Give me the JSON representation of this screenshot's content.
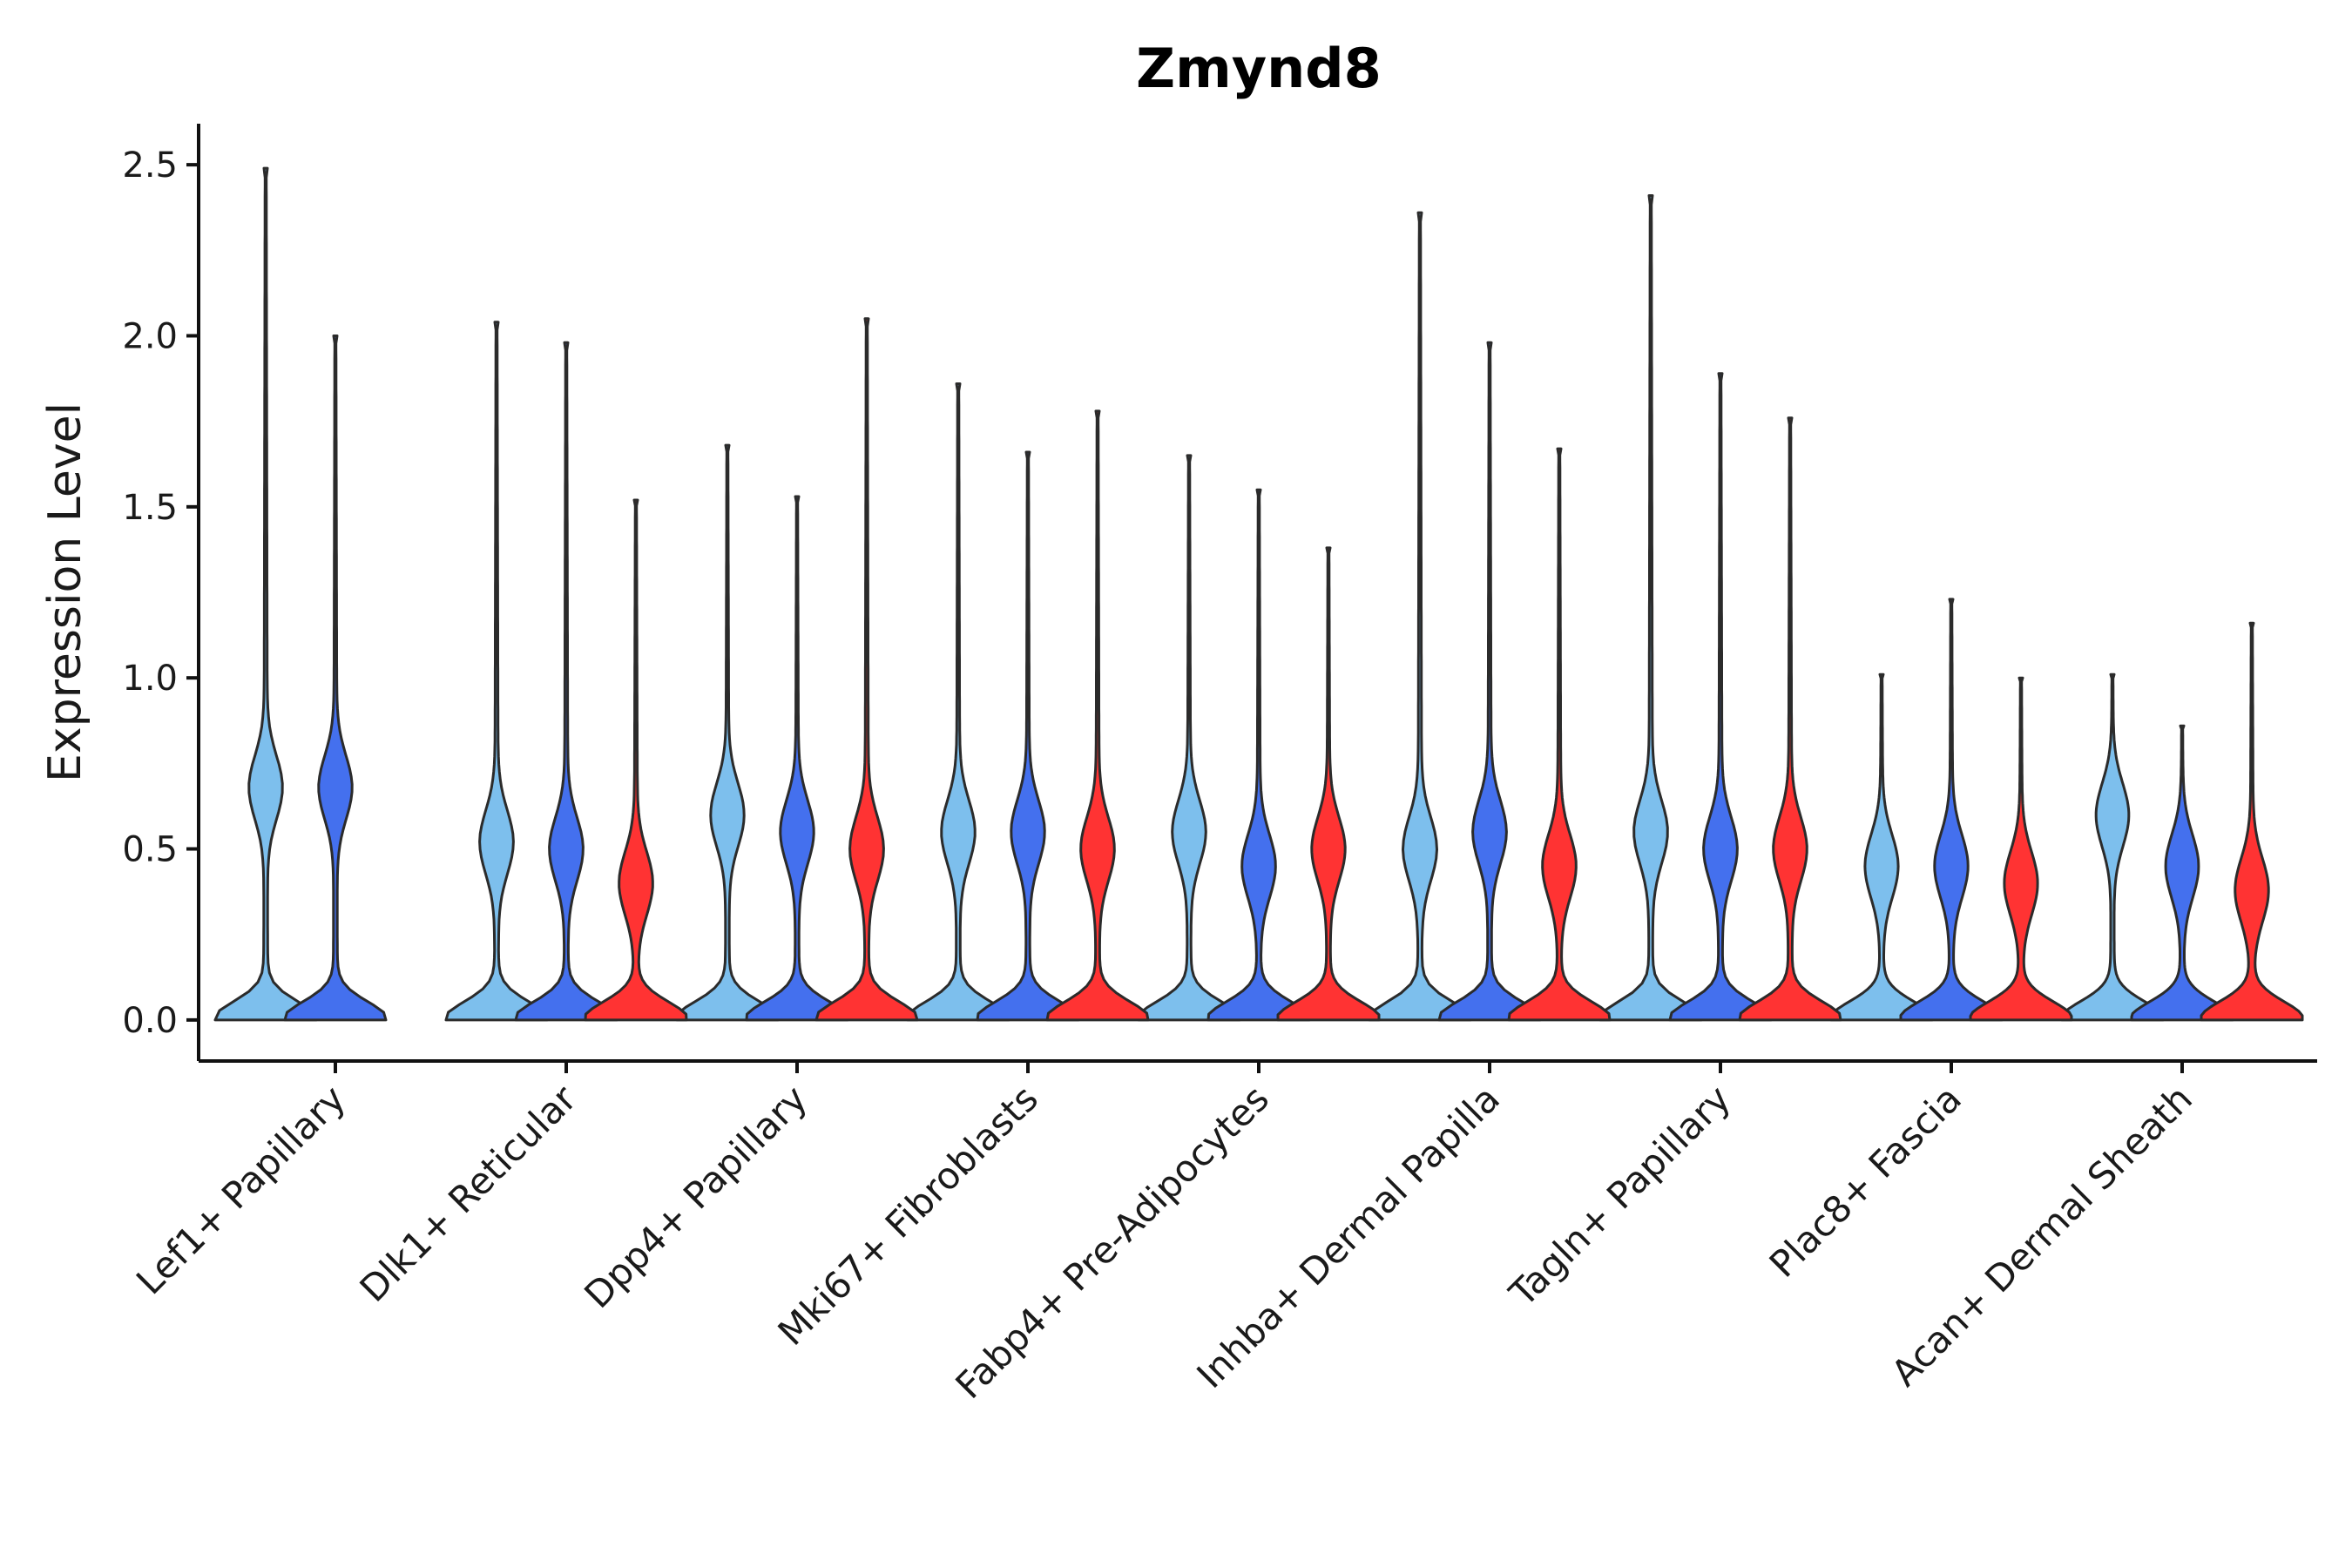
{
  "chart_data": {
    "type": "violin",
    "title": "Zmynd8",
    "xlabel": "",
    "ylabel": "Expression Level",
    "ylim": [
      -0.12,
      2.62
    ],
    "yticks": [
      0.0,
      0.5,
      1.0,
      1.5,
      2.0,
      2.5
    ],
    "ytick_labels": [
      "0.0",
      "0.5",
      "1.0",
      "1.5",
      "2.0",
      "2.5"
    ],
    "categories": [
      "Lef1+ Papillary",
      "Dlk1+ Reticular",
      "Dpp4+ Papillary",
      "Mki67+ Fibroblasts",
      "Fabp4+ Pre-Adipocytes",
      "Inhba+ Dermal Papilla",
      "Tagln+ Papillary",
      "Plac8+ Fascia",
      "Acan+ Dermal Sheath"
    ],
    "legend": "none",
    "series": [
      {
        "name": "group-light-blue",
        "color": "#7dbfed",
        "max_values": [
          2.49,
          2.04,
          1.68,
          1.86,
          1.65,
          2.36,
          2.41,
          1.01,
          1.01
        ],
        "modes": [
          0.68,
          0.52,
          0.6,
          0.55,
          0.55,
          0.5,
          0.55,
          0.45,
          0.6
        ],
        "has_data": [
          true,
          true,
          true,
          true,
          true,
          true,
          true,
          true,
          true
        ]
      },
      {
        "name": "group-blue",
        "color": "#4470ee",
        "max_values": [
          2.0,
          1.98,
          1.53,
          1.66,
          1.55,
          1.98,
          1.89,
          1.23,
          0.86
        ],
        "modes": [
          0.68,
          0.5,
          0.55,
          0.55,
          0.45,
          0.55,
          0.5,
          0.45,
          0.45
        ],
        "has_data": [
          true,
          true,
          true,
          true,
          true,
          true,
          true,
          true,
          true
        ]
      },
      {
        "name": "group-red",
        "color": "#ff3333",
        "max_values": [
          0,
          1.52,
          2.05,
          1.78,
          1.38,
          1.67,
          1.76,
          1.0,
          1.16
        ],
        "modes": [
          0,
          0.4,
          0.5,
          0.5,
          0.5,
          0.45,
          0.5,
          0.4,
          0.38
        ],
        "has_data": [
          false,
          true,
          true,
          true,
          true,
          true,
          true,
          true,
          true
        ]
      }
    ]
  }
}
